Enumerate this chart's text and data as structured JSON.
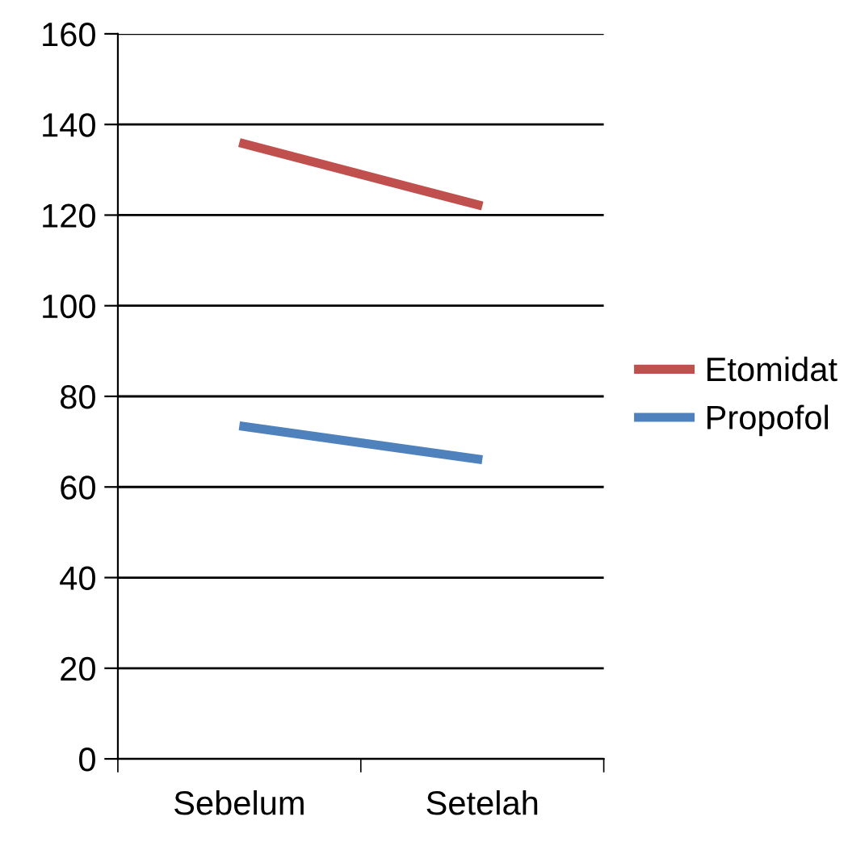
{
  "chart_data": {
    "type": "line",
    "categories": [
      "Sebelum",
      "Setelah"
    ],
    "series": [
      {
        "name": "Etomidat",
        "color": "#c0504d",
        "values": [
          136,
          122
        ]
      },
      {
        "name": "Propofol",
        "color": "#4f81bd",
        "values": [
          73.5,
          66
        ]
      }
    ],
    "ylim": [
      0,
      160
    ],
    "yticks": [
      0,
      20,
      40,
      60,
      80,
      100,
      120,
      140,
      160
    ],
    "grid": "y",
    "legend": "right",
    "marker": "none",
    "line_style": "solid"
  }
}
